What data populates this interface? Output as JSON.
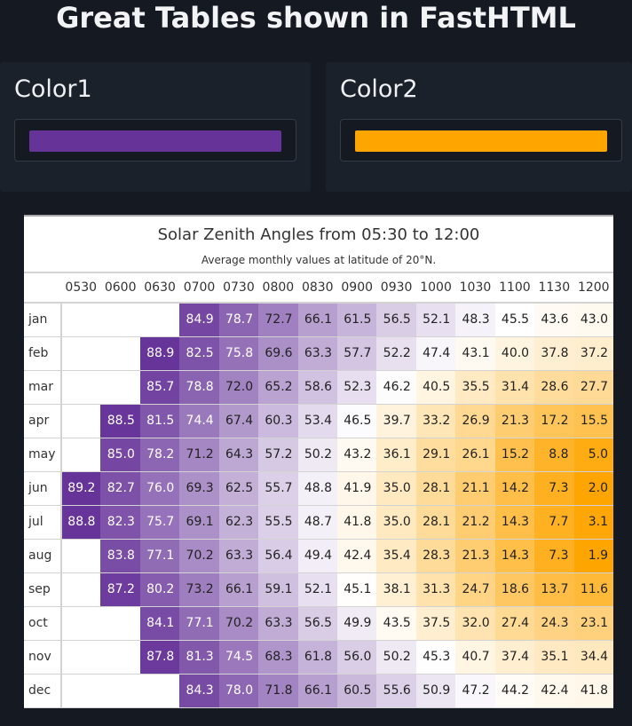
{
  "page": {
    "title": "Great Tables shown in FastHTML"
  },
  "pickers": [
    {
      "label": "Color1",
      "value": "#663399"
    },
    {
      "label": "Color2",
      "value": "#FFA500"
    }
  ],
  "table": {
    "title": "Solar Zenith Angles from 05:30 to 12:00",
    "subtitle": "Average monthly values at latitude of 20°N.",
    "columns": [
      "0530",
      "0600",
      "0630",
      "0700",
      "0730",
      "0800",
      "0830",
      "0900",
      "0930",
      "1000",
      "1030",
      "1100",
      "1130",
      "1200"
    ],
    "rows": [
      {
        "month": "jan",
        "values": [
          null,
          null,
          null,
          84.9,
          78.7,
          72.7,
          66.1,
          61.5,
          56.5,
          52.1,
          48.3,
          45.5,
          43.6,
          43.0
        ]
      },
      {
        "month": "feb",
        "values": [
          null,
          null,
          88.9,
          82.5,
          75.8,
          69.6,
          63.3,
          57.7,
          52.2,
          47.4,
          43.1,
          40.0,
          37.8,
          37.2
        ]
      },
      {
        "month": "mar",
        "values": [
          null,
          null,
          85.7,
          78.8,
          72.0,
          65.2,
          58.6,
          52.3,
          46.2,
          40.5,
          35.5,
          31.4,
          28.6,
          27.7
        ]
      },
      {
        "month": "apr",
        "values": [
          null,
          88.5,
          81.5,
          74.4,
          67.4,
          60.3,
          53.4,
          46.5,
          39.7,
          33.2,
          26.9,
          21.3,
          17.2,
          15.5
        ]
      },
      {
        "month": "may",
        "values": [
          null,
          85.0,
          78.2,
          71.2,
          64.3,
          57.2,
          50.2,
          43.2,
          36.1,
          29.1,
          26.1,
          15.2,
          8.8,
          5.0
        ]
      },
      {
        "month": "jun",
        "values": [
          89.2,
          82.7,
          76.0,
          69.3,
          62.5,
          55.7,
          48.8,
          41.9,
          35.0,
          28.1,
          21.1,
          14.2,
          7.3,
          2.0
        ]
      },
      {
        "month": "jul",
        "values": [
          88.8,
          82.3,
          75.7,
          69.1,
          62.3,
          55.5,
          48.7,
          41.8,
          35.0,
          28.1,
          21.2,
          14.3,
          7.7,
          3.1
        ]
      },
      {
        "month": "aug",
        "values": [
          null,
          83.8,
          77.1,
          70.2,
          63.3,
          56.4,
          49.4,
          42.4,
          35.4,
          28.3,
          21.3,
          14.3,
          7.3,
          1.9
        ]
      },
      {
        "month": "sep",
        "values": [
          null,
          87.2,
          80.2,
          73.2,
          66.1,
          59.1,
          52.1,
          45.1,
          38.1,
          31.3,
          24.7,
          18.6,
          13.7,
          11.6
        ]
      },
      {
        "month": "oct",
        "values": [
          null,
          null,
          84.1,
          77.1,
          70.2,
          63.3,
          56.5,
          49.9,
          43.5,
          37.5,
          32.0,
          27.4,
          24.3,
          23.1
        ]
      },
      {
        "month": "nov",
        "values": [
          null,
          null,
          87.8,
          81.3,
          74.5,
          68.3,
          61.8,
          56.0,
          50.2,
          45.3,
          40.7,
          37.4,
          35.1,
          34.4
        ]
      },
      {
        "month": "dec",
        "values": [
          null,
          null,
          null,
          84.3,
          78.0,
          71.8,
          66.1,
          60.5,
          55.6,
          50.9,
          47.2,
          44.2,
          42.4,
          41.8
        ]
      }
    ]
  }
}
